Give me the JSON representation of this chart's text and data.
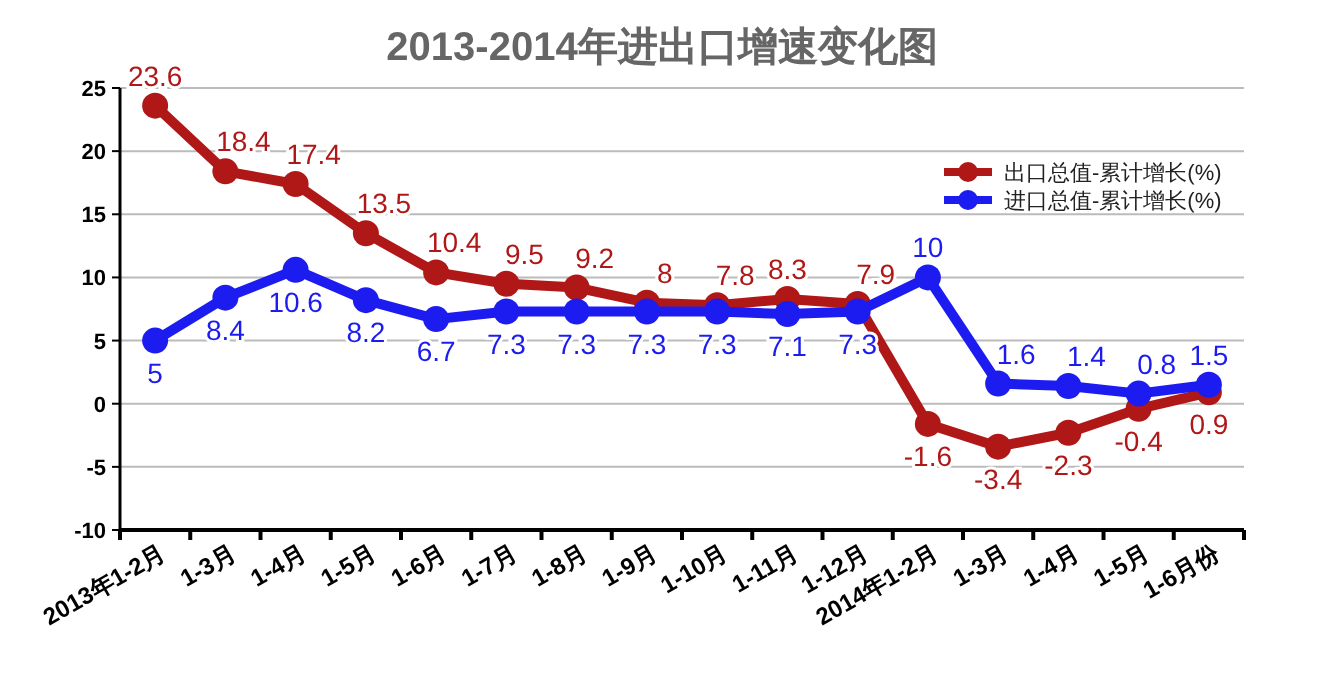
{
  "chart_data": {
    "type": "line",
    "title": "2013-2014年进出口增速变化图",
    "categories": [
      "2013年1-2月",
      "1-3月",
      "1-4月",
      "1-5月",
      "1-6月",
      "1-7月",
      "1-8月",
      "1-9月",
      "1-10月",
      "1-11月",
      "1-12月",
      "2014年1-2月",
      "1-3月",
      "1-4月",
      "1-5月",
      "1-6月份"
    ],
    "series": [
      {
        "name": "出口总值-累计增长(%)",
        "color": "#b01818",
        "values": [
          23.6,
          18.4,
          17.4,
          13.5,
          10.4,
          9.5,
          9.2,
          8,
          7.8,
          8.3,
          7.9,
          -1.6,
          -3.4,
          -2.3,
          -0.4,
          0.9
        ]
      },
      {
        "name": "进口总值-累计增长(%)",
        "color": "#1c1cf0",
        "values": [
          5,
          8.4,
          10.6,
          8.2,
          6.7,
          7.3,
          7.3,
          7.3,
          7.3,
          7.1,
          7.3,
          10,
          1.6,
          1.4,
          0.8,
          1.5
        ]
      }
    ],
    "ylim": [
      -10,
      25
    ],
    "yticks": [
      -10,
      -5,
      0,
      5,
      10,
      15,
      20,
      25
    ],
    "grid": "y",
    "legend": "top right",
    "marker": "circle",
    "line_style": "solid",
    "data_labels": true
  }
}
